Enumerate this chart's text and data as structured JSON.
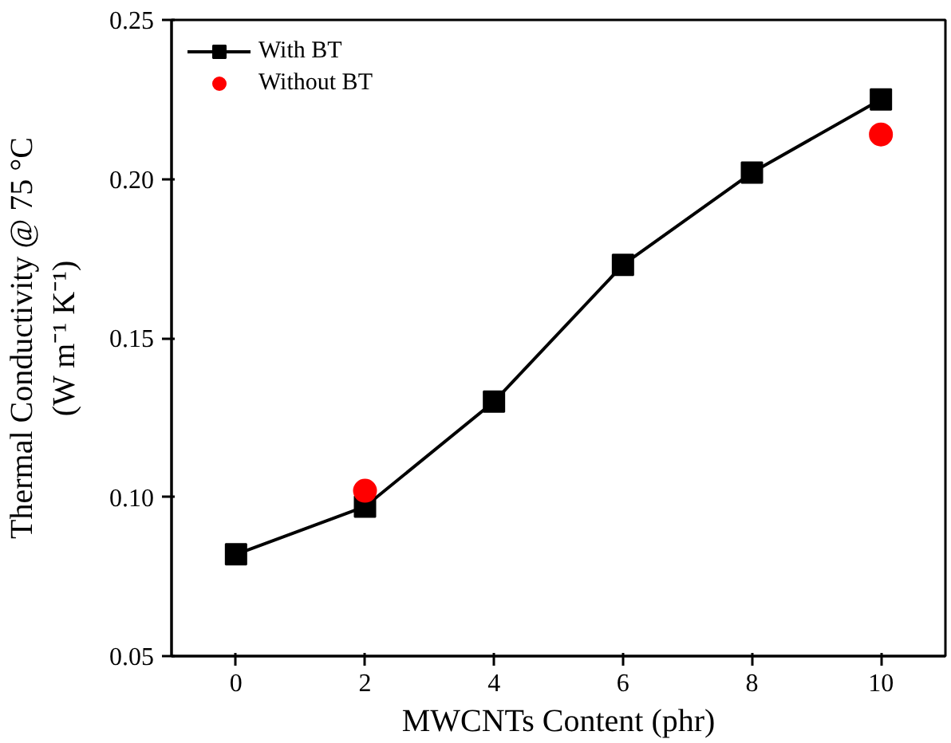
{
  "chart_data": {
    "type": "line",
    "xlabel": "MWCNTs Content (phr)",
    "ylabel": "Thermal Conductivity @ 75 °C\n(W m⁻¹ K⁻¹)",
    "x": [
      0,
      2,
      4,
      6,
      8,
      10
    ],
    "series": [
      {
        "name": "With BT",
        "color": "#000000",
        "marker": "square",
        "values": [
          0.082,
          0.097,
          0.13,
          0.173,
          0.202,
          0.225
        ]
      },
      {
        "name": "Without BT",
        "color": "#ff0000",
        "type": "scatter",
        "marker": "circle",
        "x": [
          2,
          10
        ],
        "values": [
          0.102,
          0.214
        ]
      }
    ],
    "xlim": [
      -1,
      11
    ],
    "xticks": [
      0,
      2,
      4,
      6,
      8,
      10
    ],
    "ylim": [
      0.05,
      0.25
    ],
    "yticks": [
      {
        "value": 0.05,
        "label": "0.05"
      },
      {
        "value": 0.1,
        "label": "0.10"
      },
      {
        "value": 0.15,
        "label": "0.15"
      },
      {
        "value": 0.2,
        "label": "0.20"
      },
      {
        "value": 0.25,
        "label": "0.25"
      }
    ],
    "grid": false,
    "legend": "top left"
  }
}
